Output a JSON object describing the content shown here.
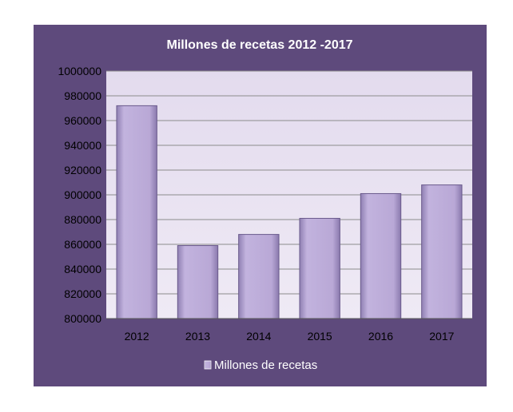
{
  "chart_data": {
    "type": "bar",
    "title": "Millones de recetas 2012 -2017",
    "categories": [
      "2012",
      "2013",
      "2014",
      "2015",
      "2016",
      "2017"
    ],
    "series": [
      {
        "name": "Millones de recetas",
        "values": [
          972000,
          859000,
          868000,
          881000,
          901000,
          908000
        ]
      }
    ],
    "ylim": [
      800000,
      1000000
    ],
    "yticks": [
      "1000000",
      "980000",
      "960000",
      "940000",
      "920000",
      "900000",
      "880000",
      "860000",
      "840000",
      "820000",
      "800000"
    ],
    "grid": true,
    "legend_position": "bottom",
    "colors": {
      "frame_background": "#5e4a7c",
      "plot_background": "#e8e1f0",
      "bar_fill": "#b7a6d4",
      "bar_edge": "#6a5a8c",
      "gridline": "#8c8c8c",
      "title": "#ffffff"
    }
  }
}
